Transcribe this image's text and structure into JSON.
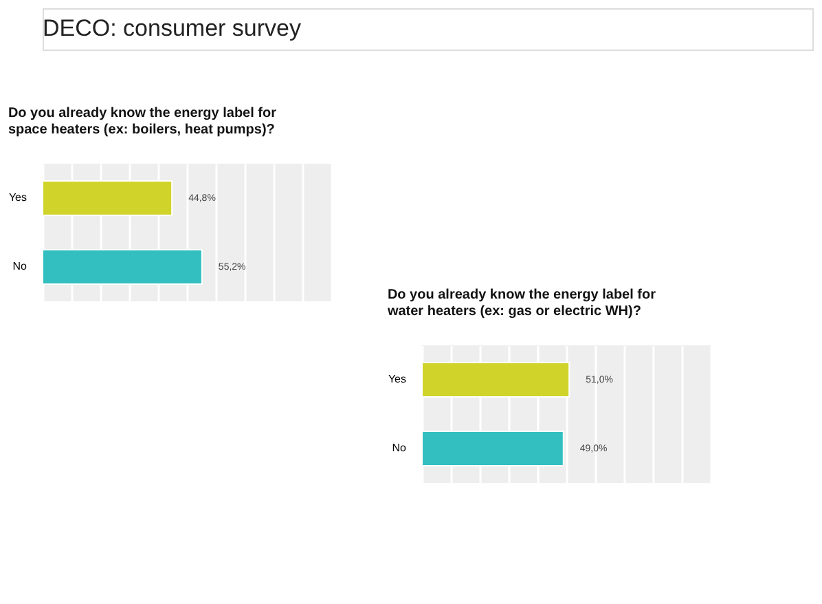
{
  "chart_data": [
    {
      "type": "other",
      "title": "DECO: consumer survey"
    },
    {
      "type": "bar",
      "orientation": "horizontal",
      "title": "Do you already know the energy label for space heaters (ex: boilers, heat pumps)?",
      "categories": [
        "Yes",
        "No"
      ],
      "values": [
        44.8,
        55.2
      ],
      "colors": [
        "#d0d42a",
        "#33bfbf"
      ],
      "value_labels": [
        "44,8%",
        "55,2%"
      ],
      "xlim": [
        0,
        100
      ],
      "xticks": [
        {
          "value": 0,
          "label": null
        },
        {
          "value": 10,
          "label": null
        },
        {
          "value": 20,
          "label": null
        },
        {
          "value": 30,
          "label": null
        },
        {
          "value": 40,
          "label": null
        },
        {
          "value": 50,
          "label": null
        },
        {
          "value": 60,
          "label": null
        },
        {
          "value": 70,
          "label": null
        },
        {
          "value": 80,
          "label": null
        },
        {
          "value": 90,
          "label": null
        },
        {
          "value": 100,
          "label": null
        }
      ],
      "grid": "x",
      "tick_labels": "y"
    },
    {
      "type": "bar",
      "orientation": "horizontal",
      "title": "Do you already know the energy label for water heaters (ex: gas or electric WH)?",
      "categories": [
        "Yes",
        "No"
      ],
      "values": [
        51.0,
        49.0
      ],
      "colors": [
        "#d0d42a",
        "#33bfbf"
      ],
      "value_labels": [
        "51,0%",
        "49,0%"
      ],
      "xlim": [
        0,
        100
      ],
      "xticks": [
        {
          "value": 0,
          "label": null
        },
        {
          "value": 10,
          "label": null
        },
        {
          "value": 20,
          "label": null
        },
        {
          "value": 30,
          "label": null
        },
        {
          "value": 40,
          "label": null
        },
        {
          "value": 50,
          "label": null
        },
        {
          "value": 60,
          "label": null
        },
        {
          "value": 70,
          "label": null
        },
        {
          "value": 80,
          "label": null
        },
        {
          "value": 90,
          "label": null
        },
        {
          "value": 100,
          "label": null
        }
      ],
      "grid": "x",
      "tick_labels": "y"
    }
  ]
}
